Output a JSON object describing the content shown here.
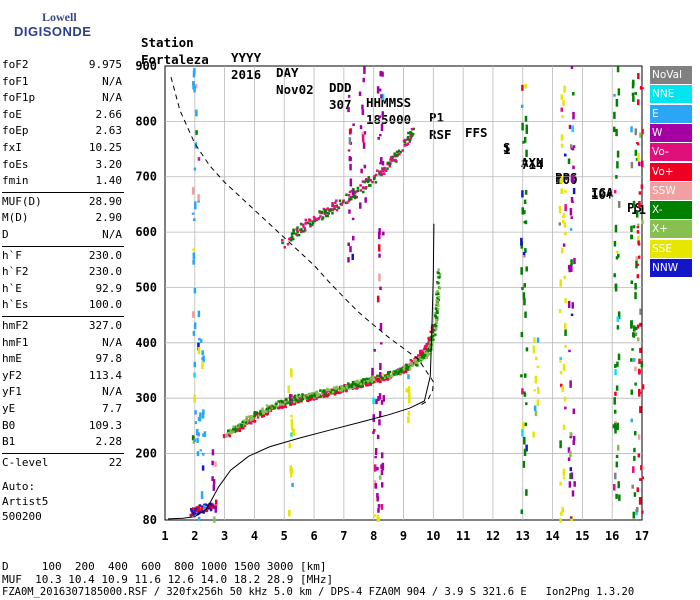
{
  "logo": {
    "line1": "Lowell",
    "line2": "DIGISONDE"
  },
  "header": {
    "labels": [
      "Station",
      "YYYY",
      "DAY",
      "DDD",
      "HHMMSS",
      "P1",
      "FFS",
      "S",
      "AXN",
      "PPS",
      "IGA",
      "PS"
    ],
    "values": [
      "Fortaleza",
      "2016",
      "Nov02",
      "307",
      "185000",
      "RSF",
      "1",
      "714",
      "100",
      "10+",
      "11"
    ]
  },
  "params": [
    {
      "k": "foF2",
      "v": "9.975"
    },
    {
      "k": "foF1",
      "v": "N/A"
    },
    {
      "k": "foF1p",
      "v": "N/A"
    },
    {
      "k": "foE",
      "v": "2.66"
    },
    {
      "k": "foEp",
      "v": "2.63"
    },
    {
      "k": "fxI",
      "v": "10.25"
    },
    {
      "k": "foEs",
      "v": "3.20"
    },
    {
      "k": "fmin",
      "v": "1.40"
    },
    {
      "k": "MUF(D)",
      "v": "28.90"
    },
    {
      "k": "M(D)",
      "v": "2.90"
    },
    {
      "k": "D",
      "v": "N/A"
    },
    {
      "k": "h`F",
      "v": "230.0"
    },
    {
      "k": "h`F2",
      "v": "230.0"
    },
    {
      "k": "h`E",
      "v": "92.9"
    },
    {
      "k": "h`Es",
      "v": "100.0"
    },
    {
      "k": "hmF2",
      "v": "327.0"
    },
    {
      "k": "hmF1",
      "v": "N/A"
    },
    {
      "k": "hmE",
      "v": "97.8"
    },
    {
      "k": "yF2",
      "v": "113.4"
    },
    {
      "k": "yF1",
      "v": "N/A"
    },
    {
      "k": "yE",
      "v": "7.7"
    },
    {
      "k": "B0",
      "v": "109.3"
    },
    {
      "k": "B1",
      "v": "2.28"
    },
    {
      "k": "C-level",
      "v": "22"
    }
  ],
  "notes": [
    "Auto:",
    "Artist5",
    "500200"
  ],
  "legend": [
    {
      "label": "NoVal",
      "color": "#808080"
    },
    {
      "label": "NNE",
      "color": "#00e5ee"
    },
    {
      "label": "E",
      "color": "#2aa6f5"
    },
    {
      "label": "W",
      "color": "#a400a4"
    },
    {
      "label": "Vo-",
      "color": "#e0107a"
    },
    {
      "label": "Vo+",
      "color": "#ee0022"
    },
    {
      "label": "SSW",
      "color": "#f0a0a0"
    },
    {
      "label": "X-",
      "color": "#008000"
    },
    {
      "label": "X+",
      "color": "#88c050"
    },
    {
      "label": "SSE",
      "color": "#e6e600"
    },
    {
      "label": "NNW",
      "color": "#1414c8"
    }
  ],
  "footer": {
    "d_row": "D     100  200  400  600  800 1000 1500 3000 [km]",
    "muf_row": "MUF  10.3 10.4 10.9 11.6 12.6 14.0 18.2 28.9 [MHz]",
    "file_row": "FZA0M_2016307185000.RSF / 320fx256h 50 kHz 5.0 km / DPS-4 FZA0M 904 / 3.9 S 321.6 E   Ion2Png 1.3.20"
  },
  "chart_data": {
    "type": "scatter",
    "xlim": [
      1,
      17
    ],
    "ylim": [
      80,
      900
    ],
    "xticks": [
      1,
      2,
      3,
      4,
      5,
      6,
      7,
      8,
      9,
      10,
      11,
      12,
      13,
      14,
      15,
      16,
      17
    ],
    "yticks": [
      80,
      200,
      300,
      400,
      500,
      600,
      700,
      800,
      900
    ],
    "grid": true,
    "trace_colors": {
      "o_trace": "#e0107a",
      "x_trace": "#008000",
      "e_trace": "#e0107a",
      "scatter": "#a400a4"
    },
    "o_trace": [
      [
        2.9,
        230
      ],
      [
        3.5,
        250
      ],
      [
        4.0,
        268
      ],
      [
        4.5,
        282
      ],
      [
        5.0,
        292
      ],
      [
        5.5,
        300
      ],
      [
        6.0,
        306
      ],
      [
        6.5,
        312
      ],
      [
        7.0,
        320
      ],
      [
        7.5,
        326
      ],
      [
        8.0,
        334
      ],
      [
        8.5,
        342
      ],
      [
        9.0,
        354
      ],
      [
        9.5,
        378
      ],
      [
        9.8,
        400
      ],
      [
        9.95,
        430
      ]
    ],
    "x_trace": [
      [
        3.0,
        236
      ],
      [
        3.5,
        256
      ],
      [
        4.0,
        272
      ],
      [
        4.5,
        286
      ],
      [
        5.0,
        296
      ],
      [
        5.5,
        303
      ],
      [
        6.0,
        308
      ],
      [
        6.5,
        315
      ],
      [
        7.0,
        322
      ],
      [
        7.5,
        329
      ],
      [
        8.0,
        337
      ],
      [
        8.5,
        345
      ],
      [
        9.0,
        356
      ],
      [
        9.5,
        370
      ],
      [
        9.8,
        385
      ],
      [
        10.0,
        420
      ],
      [
        10.1,
        470
      ],
      [
        10.15,
        530
      ]
    ],
    "upper_trace": [
      [
        4.9,
        580
      ],
      [
        5.5,
        608
      ],
      [
        6.0,
        625
      ],
      [
        6.5,
        643
      ],
      [
        7.0,
        660
      ],
      [
        7.5,
        680
      ],
      [
        8.0,
        700
      ],
      [
        8.5,
        725
      ],
      [
        9.0,
        760
      ],
      [
        9.3,
        785
      ]
    ],
    "e_trace": [
      [
        1.8,
        95
      ],
      [
        2.0,
        100
      ],
      [
        2.2,
        102
      ],
      [
        2.4,
        104
      ],
      [
        2.6,
        110
      ]
    ],
    "profile_dashed": [
      [
        1.2,
        880
      ],
      [
        1.5,
        820
      ],
      [
        2,
        760
      ],
      [
        2.5,
        720
      ],
      [
        3,
        690
      ],
      [
        3.5,
        665
      ],
      [
        4,
        640
      ],
      [
        4.5,
        615
      ],
      [
        5,
        590
      ],
      [
        5.5,
        565
      ],
      [
        6,
        540
      ],
      [
        6.5,
        510
      ],
      [
        7,
        482
      ],
      [
        7.5,
        455
      ],
      [
        8,
        432
      ],
      [
        8.5,
        410
      ],
      [
        9,
        390
      ],
      [
        9.5,
        370
      ],
      [
        10,
        330
      ],
      [
        9.98,
        315
      ],
      [
        9.8,
        295
      ],
      [
        9.5,
        285
      ]
    ],
    "profile_solid": [
      [
        1.1,
        82
      ],
      [
        1.6,
        83
      ],
      [
        2,
        86
      ],
      [
        2.4,
        100
      ],
      [
        2.8,
        140
      ],
      [
        3.2,
        170
      ],
      [
        3.8,
        195
      ],
      [
        4.5,
        212
      ],
      [
        5.5,
        228
      ],
      [
        6.5,
        242
      ],
      [
        7.5,
        256
      ],
      [
        8.5,
        270
      ],
      [
        9.2,
        282
      ],
      [
        9.7,
        295
      ],
      [
        9.9,
        340
      ],
      [
        9.95,
        420
      ],
      [
        10.0,
        520
      ],
      [
        10.02,
        615
      ]
    ]
  }
}
